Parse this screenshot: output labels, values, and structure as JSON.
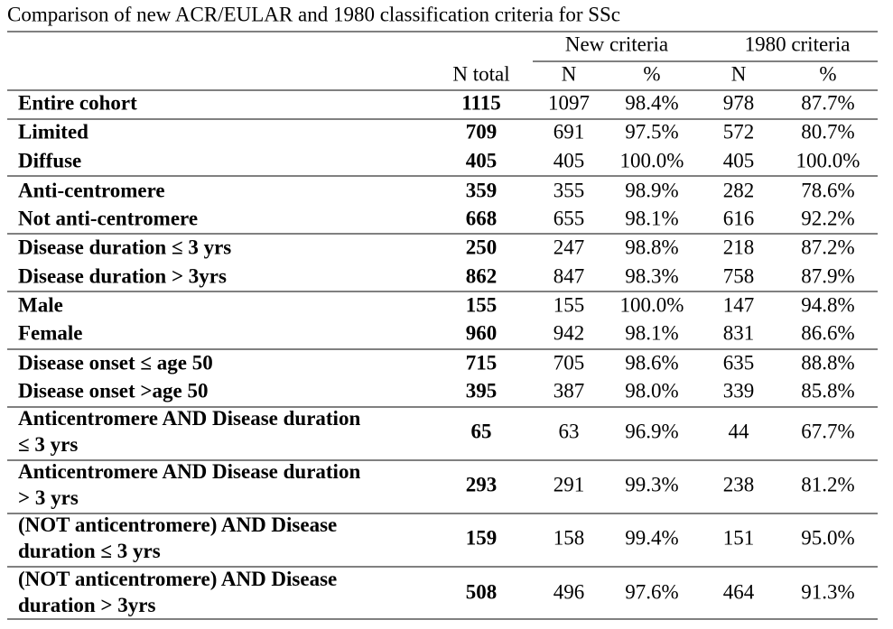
{
  "title": "Comparison of new ACR/EULAR and 1980 classification criteria for SSc",
  "groups": [
    "New criteria",
    "1980 criteria"
  ],
  "columns": [
    "N total",
    "N",
    "%",
    "N",
    "%"
  ],
  "rows": [
    {
      "label": [
        "Entire cohort"
      ],
      "cells": [
        "1115",
        "1097",
        "98.4%",
        "978",
        "87.7%"
      ]
    },
    {
      "label": [
        "Limited"
      ],
      "cells": [
        "709",
        "691",
        "97.5%",
        "572",
        "80.7%"
      ]
    },
    {
      "label": [
        "Diffuse"
      ],
      "cells": [
        "405",
        "405",
        "100.0%",
        "405",
        "100.0%"
      ]
    },
    {
      "label": [
        "Anti-centromere"
      ],
      "cells": [
        "359",
        "355",
        "98.9%",
        "282",
        "78.6%"
      ]
    },
    {
      "label": [
        "Not anti-centromere"
      ],
      "cells": [
        "668",
        "655",
        "98.1%",
        "616",
        "92.2%"
      ]
    },
    {
      "label": [
        "Disease duration ≤ 3 yrs"
      ],
      "cells": [
        "250",
        "247",
        "98.8%",
        "218",
        "87.2%"
      ]
    },
    {
      "label": [
        "Disease duration > 3yrs"
      ],
      "cells": [
        "862",
        "847",
        "98.3%",
        "758",
        "87.9%"
      ]
    },
    {
      "label": [
        "Male"
      ],
      "cells": [
        "155",
        "155",
        "100.0%",
        "147",
        "94.8%"
      ]
    },
    {
      "label": [
        "Female"
      ],
      "cells": [
        "960",
        "942",
        "98.1%",
        "831",
        "86.6%"
      ]
    },
    {
      "label": [
        "Disease onset ≤ age 50"
      ],
      "cells": [
        "715",
        "705",
        "98.6%",
        "635",
        "88.8%"
      ]
    },
    {
      "label": [
        "Disease onset >age 50"
      ],
      "cells": [
        "395",
        "387",
        "98.0%",
        "339",
        "85.8%"
      ]
    },
    {
      "label": [
        "Anticentromere AND Disease duration",
        "≤ 3 yrs"
      ],
      "cells": [
        "65",
        "63",
        "96.9%",
        "44",
        "67.7%"
      ]
    },
    {
      "label": [
        "Anticentromere AND Disease duration",
        "> 3 yrs"
      ],
      "cells": [
        "293",
        "291",
        "99.3%",
        "238",
        "81.2%"
      ]
    },
    {
      "label": [
        "(NOT anticentromere) AND Disease",
        "duration ≤ 3 yrs"
      ],
      "cells": [
        "159",
        "158",
        "99.4%",
        "151",
        "95.0%"
      ]
    },
    {
      "label": [
        "(NOT anticentromere) AND Disease",
        "duration > 3yrs"
      ],
      "cells": [
        "508",
        "496",
        "97.6%",
        "464",
        "91.3%"
      ]
    }
  ]
}
